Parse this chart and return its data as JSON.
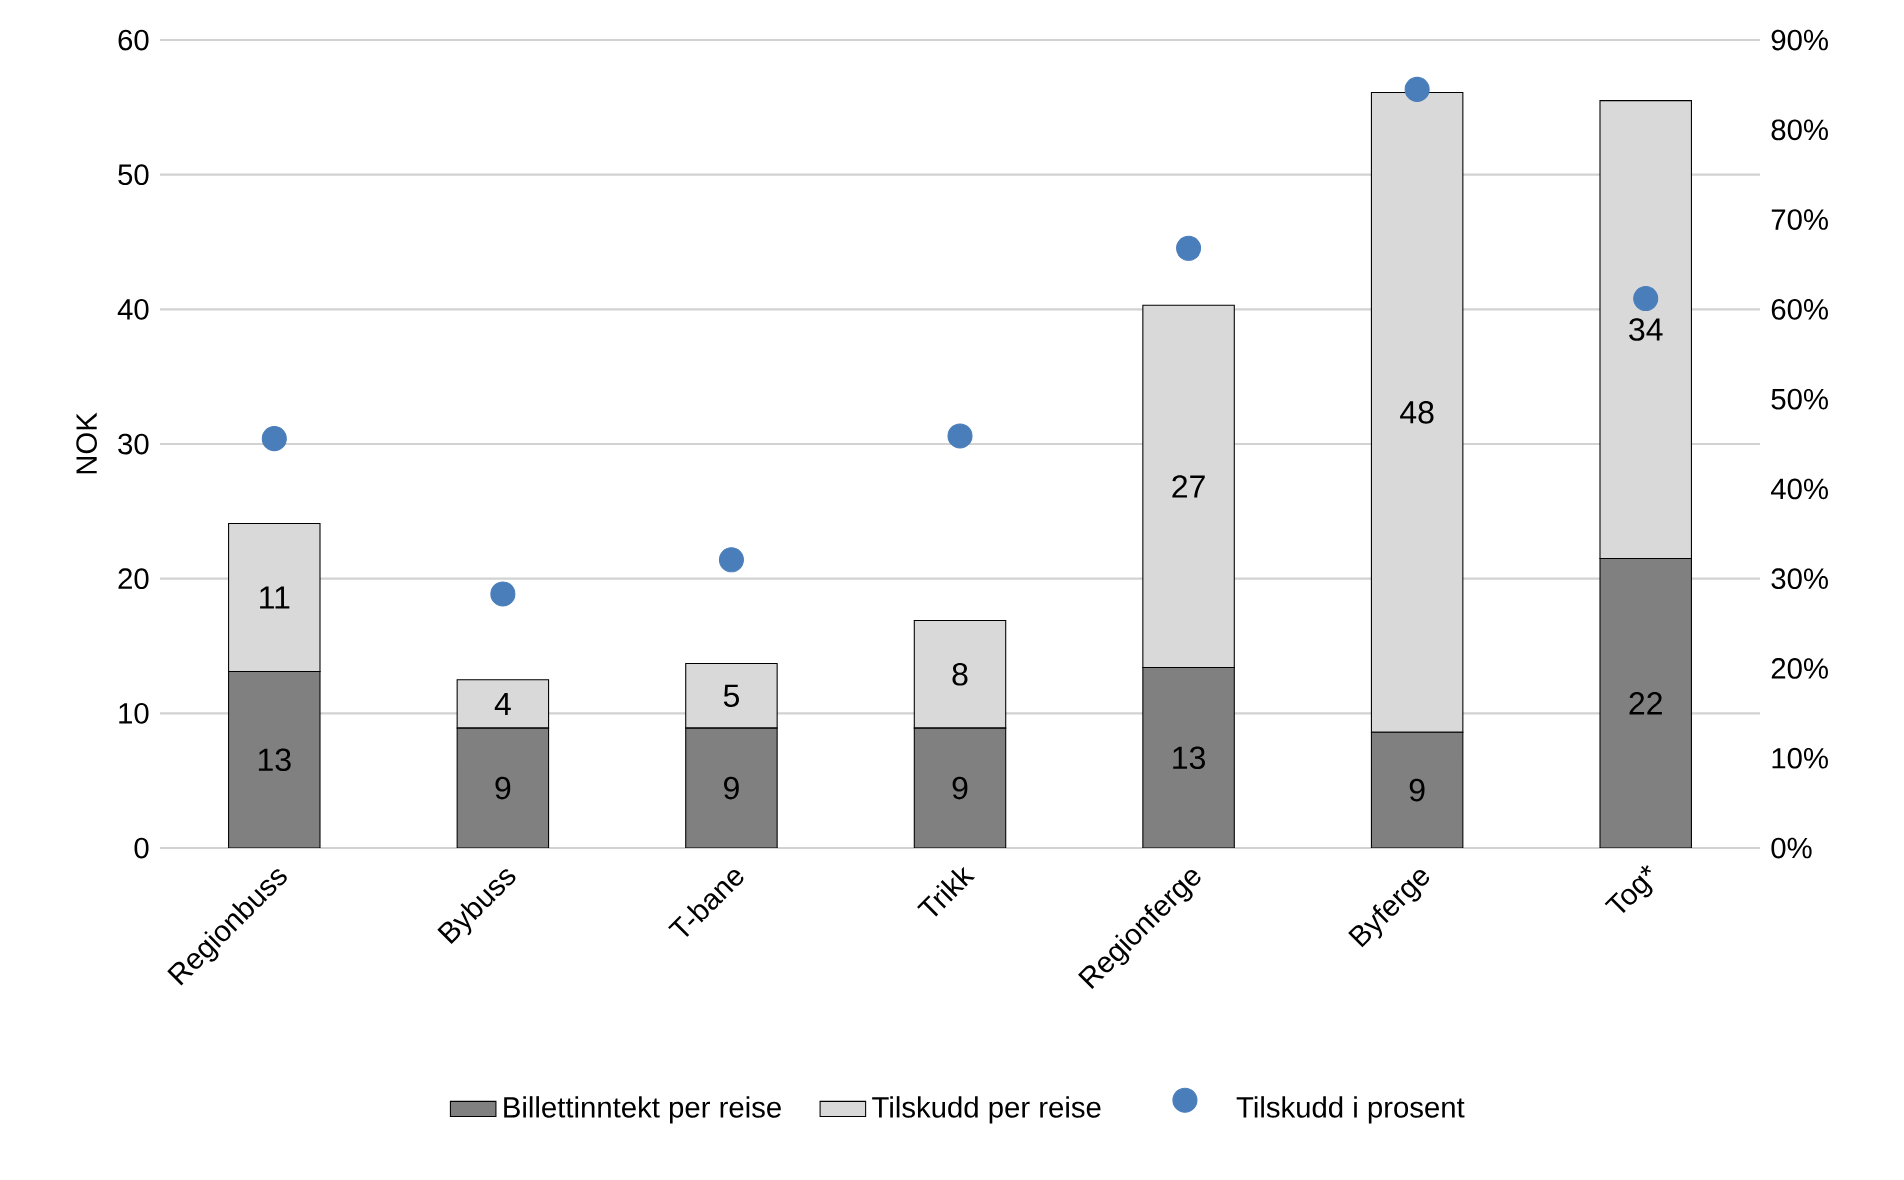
{
  "chart_data": {
    "type": "bar",
    "stacked": true,
    "ylabel": "NOK",
    "grid": "y",
    "legend": "bottom",
    "categories": [
      "Regionbuss",
      "Bybuss",
      "T-bane",
      "Trikk",
      "Regionferge",
      "Byferge",
      "Tog*"
    ],
    "ylim": [
      0,
      60
    ],
    "yticks": [
      0,
      10,
      20,
      30,
      40,
      50,
      60
    ],
    "y2lim": [
      0,
      90
    ],
    "y2ticks": [
      {
        "value": 0,
        "label": "0%"
      },
      {
        "value": 10,
        "label": "10%"
      },
      {
        "value": 20,
        "label": "20%"
      },
      {
        "value": 30,
        "label": "30%"
      },
      {
        "value": 40,
        "label": "40%"
      },
      {
        "value": 50,
        "label": "50%"
      },
      {
        "value": 60,
        "label": "60%"
      },
      {
        "value": 70,
        "label": "70%"
      },
      {
        "value": 80,
        "label": "80%"
      },
      {
        "value": 90,
        "label": "90%"
      }
    ],
    "series": [
      {
        "name": "Billettinntekt per reise",
        "color": "#808080",
        "values": [
          13.1,
          8.9,
          8.9,
          8.9,
          13.4,
          8.6,
          21.5
        ],
        "value_labels": [
          "13",
          "9",
          "9",
          "9",
          "13",
          "9",
          "22"
        ]
      },
      {
        "name": "Tilskudd per reise",
        "color": "#d9d9d9",
        "values": [
          11.0,
          3.6,
          4.8,
          8.0,
          26.9,
          47.5,
          34.0
        ],
        "value_labels": [
          "11",
          "4",
          "5",
          "8",
          "27",
          "48",
          "34"
        ]
      },
      {
        "name": "Tilskudd i prosent",
        "type": "scatter",
        "axis": "y2",
        "marker": "circle",
        "color": "#4a7ebb",
        "values": [
          45.6,
          28.3,
          32.1,
          45.9,
          66.8,
          84.5,
          61.2
        ]
      }
    ]
  }
}
